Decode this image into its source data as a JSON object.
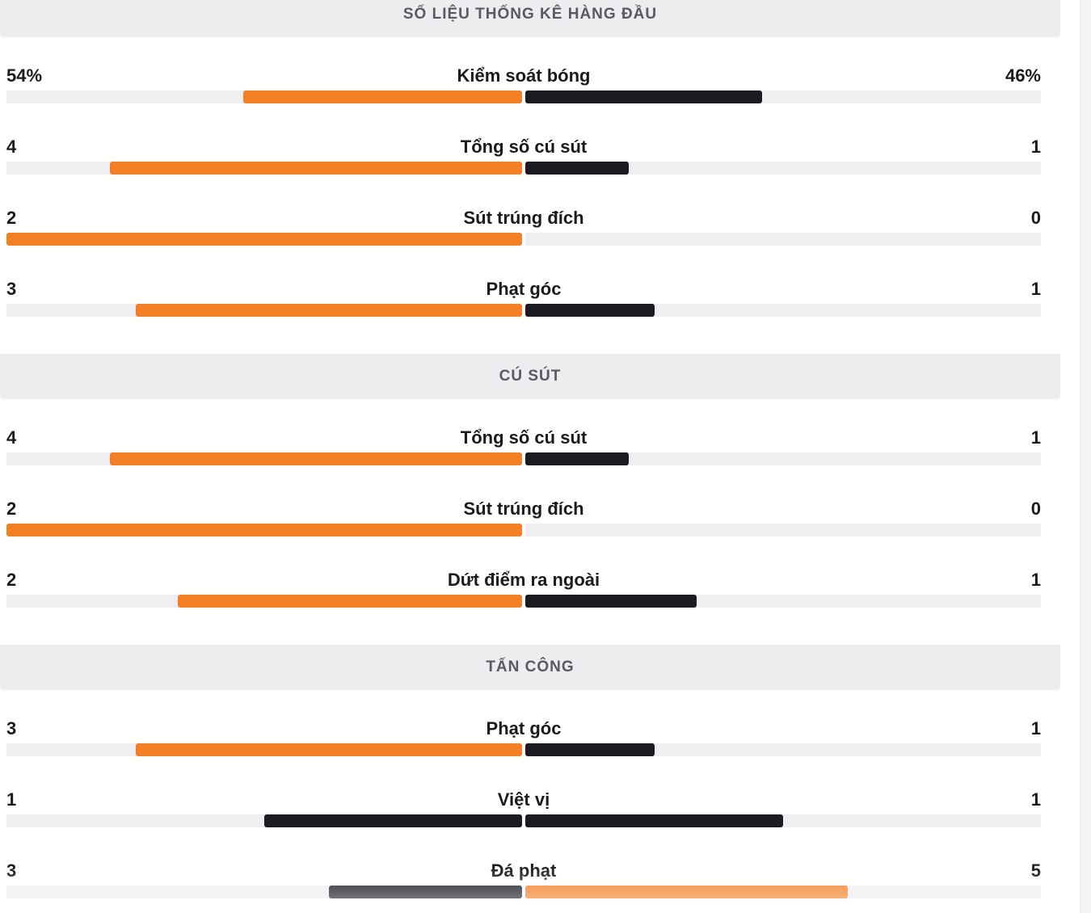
{
  "colors": {
    "home": "#f47f24",
    "away": "#1b1b20"
  },
  "sections": [
    {
      "title": "SỐ LIỆU THỐNG KÊ HÀNG ĐẦU",
      "rows": [
        {
          "label": "Kiểm soát bóng",
          "home_text": "54%",
          "away_text": "46%",
          "home_frac": 0.54,
          "away_frac": 0.46,
          "home_color": "#f47f24",
          "away_color": "#1b1b20"
        },
        {
          "label": "Tổng số cú sút",
          "home_text": "4",
          "away_text": "1",
          "home_frac": 0.8,
          "away_frac": 0.2,
          "home_color": "#f47f24",
          "away_color": "#1b1b20"
        },
        {
          "label": "Sút trúng đích",
          "home_text": "2",
          "away_text": "0",
          "home_frac": 1.0,
          "away_frac": 0.0,
          "home_color": "#f47f24",
          "away_color": "#1b1b20"
        },
        {
          "label": "Phạt góc",
          "home_text": "3",
          "away_text": "1",
          "home_frac": 0.75,
          "away_frac": 0.25,
          "home_color": "#f47f24",
          "away_color": "#1b1b20"
        }
      ]
    },
    {
      "title": "CÚ SÚT",
      "rows": [
        {
          "label": "Tổng số cú sút",
          "home_text": "4",
          "away_text": "1",
          "home_frac": 0.8,
          "away_frac": 0.2,
          "home_color": "#f47f24",
          "away_color": "#1b1b20"
        },
        {
          "label": "Sút trúng đích",
          "home_text": "2",
          "away_text": "0",
          "home_frac": 1.0,
          "away_frac": 0.0,
          "home_color": "#f47f24",
          "away_color": "#1b1b20"
        },
        {
          "label": "Dứt điểm ra ngoài",
          "home_text": "2",
          "away_text": "1",
          "home_frac": 0.667,
          "away_frac": 0.333,
          "home_color": "#f47f24",
          "away_color": "#1b1b20"
        }
      ]
    },
    {
      "title": "TẤN CÔNG",
      "rows": [
        {
          "label": "Phạt góc",
          "home_text": "3",
          "away_text": "1",
          "home_frac": 0.75,
          "away_frac": 0.25,
          "home_color": "#f47f24",
          "away_color": "#1b1b20"
        },
        {
          "label": "Việt vị",
          "home_text": "1",
          "away_text": "1",
          "home_frac": 0.5,
          "away_frac": 0.5,
          "home_color": "#1b1b20",
          "away_color": "#1b1b20"
        },
        {
          "label": "Đá phạt",
          "home_text": "3",
          "away_text": "5",
          "home_frac": 0.375,
          "away_frac": 0.625,
          "home_color": "#1b1b20",
          "away_color": "#f47f24"
        }
      ]
    }
  ]
}
